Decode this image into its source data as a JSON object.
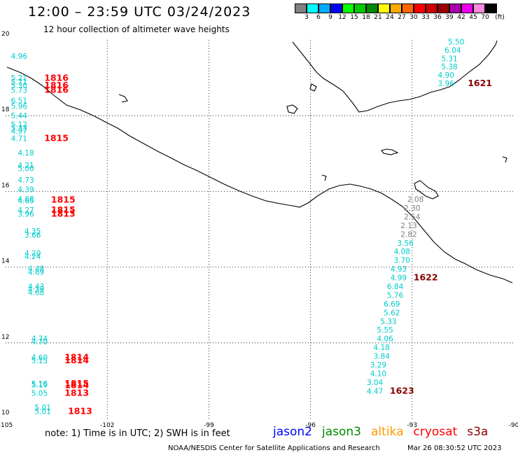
{
  "header": {
    "title": "12:00 – 23:59 UTC 03/24/2023",
    "subtitle": "12 hour collection of altimeter wave heights"
  },
  "legend": {
    "colors": [
      "#808080",
      "#00ffff",
      "#00aaff",
      "#0000ff",
      "#00ff00",
      "#00cc00",
      "#008800",
      "#ffff00",
      "#ffaa00",
      "#ff6600",
      "#ff0000",
      "#cc0000",
      "#990000",
      "#aa00aa",
      "#ee00ee",
      "#ff88dd",
      "#000000"
    ],
    "labels": [
      "3",
      "6",
      "9",
      "12",
      "15",
      "18",
      "21",
      "24",
      "27",
      "30",
      "33",
      "36",
      "39",
      "42",
      "45",
      "70",
      "(ft)"
    ]
  },
  "axes": {
    "lon_labels": [
      "-105",
      "-102",
      "-99",
      "-96",
      "-93",
      "-90"
    ],
    "lat_labels": [
      "20",
      "18",
      "16",
      "14",
      "12",
      "10"
    ]
  },
  "map_data": {
    "lon_range": [
      -105,
      -90
    ],
    "lat_range": [
      10,
      20
    ],
    "satellite_colors": {
      "jason2": "#0000ff",
      "jason3": "#008800",
      "altika": "#ff9900",
      "cryosat": "#ff0000",
      "s3a": "#880000"
    },
    "value_color": "#00cccc",
    "value_color_low": "#808080",
    "tracks": [
      {
        "satellite": "cryosat",
        "label_color": "#ff0000",
        "values": [
          {
            "v": "4.96",
            "lat": 19.5,
            "lon": -104.6
          },
          {
            "v": "5.21",
            "lat": 18.93,
            "lon": -104.6
          },
          {
            "v": "5.71",
            "lat": 18.82,
            "lon": -104.6
          },
          {
            "v": "5.30",
            "lat": 18.72,
            "lon": -104.6
          },
          {
            "v": "5.73",
            "lat": 18.6,
            "lon": -104.6
          },
          {
            "v": "6.51",
            "lat": 18.33,
            "lon": -104.6
          },
          {
            "v": "5.96",
            "lat": 18.18,
            "lon": -104.6
          },
          {
            "v": "5.44",
            "lat": 17.93,
            "lon": -104.6
          },
          {
            "v": "5.12",
            "lat": 17.7,
            "lon": -104.6
          },
          {
            "v": "5.33",
            "lat": 17.61,
            "lon": -104.6
          },
          {
            "v": "4.97",
            "lat": 17.52,
            "lon": -104.6
          },
          {
            "v": "4.71",
            "lat": 17.33,
            "lon": -104.6
          },
          {
            "v": "4.18",
            "lat": 16.95,
            "lon": -104.4
          },
          {
            "v": "4.21",
            "lat": 16.62,
            "lon": -104.4
          },
          {
            "v": "5.00",
            "lat": 16.53,
            "lon": -104.4
          },
          {
            "v": "4.73",
            "lat": 16.23,
            "lon": -104.4
          },
          {
            "v": "4.39",
            "lat": 15.98,
            "lon": -104.4
          },
          {
            "v": "4.68",
            "lat": 15.73,
            "lon": -104.4
          },
          {
            "v": "4.65",
            "lat": 15.68,
            "lon": -104.4
          },
          {
            "v": "4.27",
            "lat": 15.43,
            "lon": -104.4
          },
          {
            "v": "3.96",
            "lat": 15.33,
            "lon": -104.4
          },
          {
            "v": "4.35",
            "lat": 14.88,
            "lon": -104.2
          },
          {
            "v": "3.66",
            "lat": 14.78,
            "lon": -104.2
          },
          {
            "v": "4.20",
            "lat": 14.3,
            "lon": -104.2
          },
          {
            "v": "4.24",
            "lat": 14.21,
            "lon": -104.2
          },
          {
            "v": "4.48",
            "lat": 13.89,
            "lon": -104.1
          },
          {
            "v": "4.69",
            "lat": 13.8,
            "lon": -104.1
          },
          {
            "v": "4.43",
            "lat": 13.42,
            "lon": -104.1
          },
          {
            "v": "4.39",
            "lat": 13.35,
            "lon": -104.1
          },
          {
            "v": "4.68",
            "lat": 13.26,
            "lon": -104.1
          },
          {
            "v": "4.74",
            "lat": 12.04,
            "lon": -104.0
          },
          {
            "v": "4.70",
            "lat": 11.96,
            "lon": -104.0
          },
          {
            "v": "4.60",
            "lat": 11.54,
            "lon": -104.0
          },
          {
            "v": "5.15",
            "lat": 11.46,
            "lon": -104.0
          },
          {
            "v": "5.16",
            "lat": 10.85,
            "lon": -104.0
          },
          {
            "v": "5.19",
            "lat": 10.82,
            "lon": -104.0
          },
          {
            "v": "5.05",
            "lat": 10.6,
            "lon": -104.0
          },
          {
            "v": "5.01",
            "lat": 10.22,
            "lon": -103.9
          },
          {
            "v": "5.01",
            "lat": 10.12,
            "lon": -103.9
          }
        ],
        "times": [
          {
            "t": "1816",
            "lat": 18.92,
            "lon": -103.5
          },
          {
            "t": "1816",
            "lat": 18.72,
            "lon": -103.5
          },
          {
            "t": "1816",
            "lat": 18.6,
            "lon": -103.5
          },
          {
            "t": "1815",
            "lat": 17.33,
            "lon": -103.5
          },
          {
            "t": "1815",
            "lat": 15.7,
            "lon": -103.3
          },
          {
            "t": "1815",
            "lat": 15.43,
            "lon": -103.3
          },
          {
            "t": "1813",
            "lat": 15.33,
            "lon": -103.3
          },
          {
            "t": "1814",
            "lat": 11.54,
            "lon": -102.9
          },
          {
            "t": "1814",
            "lat": 11.46,
            "lon": -102.9
          },
          {
            "t": "1815",
            "lat": 10.85,
            "lon": -102.9
          },
          {
            "t": "1814",
            "lat": 10.8,
            "lon": -102.9
          },
          {
            "t": "1813",
            "lat": 10.6,
            "lon": -102.9
          },
          {
            "t": "1813",
            "lat": 10.12,
            "lon": -102.8
          }
        ]
      },
      {
        "satellite": "s3a",
        "label_color": "#880000",
        "values": [
          {
            "v": "5.50",
            "lat": 19.88,
            "lon": -91.7
          },
          {
            "v": "6.04",
            "lat": 19.66,
            "lon": -91.8
          },
          {
            "v": "5.31",
            "lat": 19.44,
            "lon": -91.9
          },
          {
            "v": "5.38",
            "lat": 19.22,
            "lon": -91.9
          },
          {
            "v": "4.90",
            "lat": 19.0,
            "lon": -92.0
          },
          {
            "v": "3.96",
            "lat": 18.78,
            "lon": -92.0
          },
          {
            "v": "2.08",
            "lat": 15.72,
            "lon": -92.9,
            "low": true
          },
          {
            "v": "2.30",
            "lat": 15.49,
            "lon": -93.0,
            "low": true
          },
          {
            "v": "2.54",
            "lat": 15.26,
            "lon": -93.0,
            "low": true
          },
          {
            "v": "2.13",
            "lat": 15.03,
            "lon": -93.1,
            "low": true
          },
          {
            "v": "2.82",
            "lat": 14.8,
            "lon": -93.1,
            "low": true
          },
          {
            "v": "3.56",
            "lat": 14.57,
            "lon": -93.2
          },
          {
            "v": "4.08",
            "lat": 14.34,
            "lon": -93.3
          },
          {
            "v": "3.70",
            "lat": 14.11,
            "lon": -93.3
          },
          {
            "v": "4.93",
            "lat": 13.88,
            "lon": -93.4
          },
          {
            "v": "4.99",
            "lat": 13.65,
            "lon": -93.4
          },
          {
            "v": "6.84",
            "lat": 13.42,
            "lon": -93.5
          },
          {
            "v": "5.76",
            "lat": 13.19,
            "lon": -93.5
          },
          {
            "v": "6.69",
            "lat": 12.96,
            "lon": -93.6
          },
          {
            "v": "5.62",
            "lat": 12.73,
            "lon": -93.6
          },
          {
            "v": "5.33",
            "lat": 12.5,
            "lon": -93.7
          },
          {
            "v": "5.55",
            "lat": 12.27,
            "lon": -93.8
          },
          {
            "v": "4.06",
            "lat": 12.04,
            "lon": -93.8
          },
          {
            "v": "4.18",
            "lat": 11.81,
            "lon": -93.9
          },
          {
            "v": "3.84",
            "lat": 11.58,
            "lon": -93.9
          },
          {
            "v": "3.29",
            "lat": 11.35,
            "lon": -94.0
          },
          {
            "v": "4.10",
            "lat": 11.12,
            "lon": -94.0
          },
          {
            "v": "3.04",
            "lat": 10.89,
            "lon": -94.1
          },
          {
            "v": "4.47",
            "lat": 10.66,
            "lon": -94.1
          }
        ],
        "times": [
          {
            "t": "1621",
            "lat": 18.78,
            "lon": -91.0
          },
          {
            "t": "1622",
            "lat": 13.65,
            "lon": -92.6
          },
          {
            "t": "1623",
            "lat": 10.66,
            "lon": -93.3
          }
        ]
      }
    ]
  },
  "footer": {
    "note": "note:  1) Time is in UTC;  2) SWH is in feet",
    "missions": [
      {
        "name": "jason2",
        "color": "#0000ff"
      },
      {
        "name": "jason3",
        "color": "#008800"
      },
      {
        "name": "altika",
        "color": "#ff9900"
      },
      {
        "name": "cryosat",
        "color": "#ff0000"
      },
      {
        "name": "s3a",
        "color": "#880000"
      }
    ],
    "credit": "NOAA/NESDIS Center for Satellite Applications and Research",
    "timestamp": "Mar 26 08:30:52 UTC 2023"
  }
}
